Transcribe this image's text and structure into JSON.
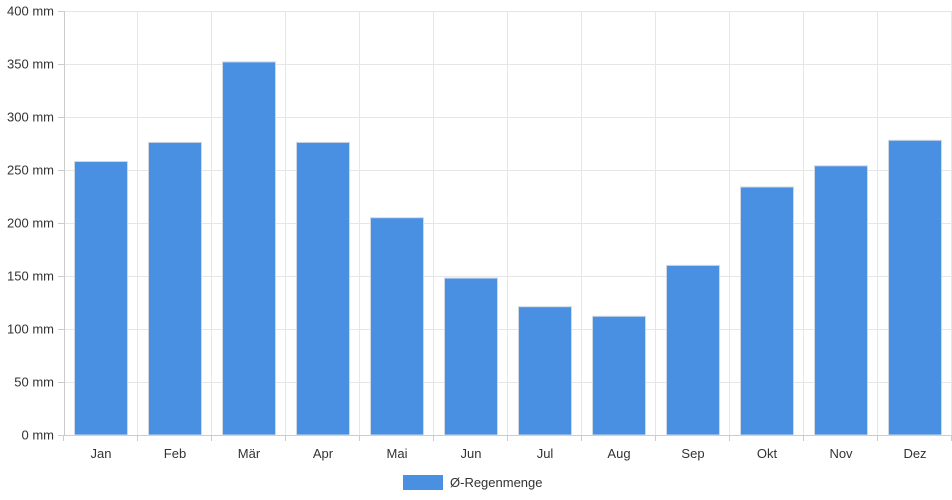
{
  "chart_data": {
    "type": "bar",
    "categories": [
      "Jan",
      "Feb",
      "Mär",
      "Apr",
      "Mai",
      "Jun",
      "Jul",
      "Aug",
      "Sep",
      "Okt",
      "Nov",
      "Dez"
    ],
    "series": [
      {
        "name": "Ø-Regenmenge",
        "values": [
          258,
          276,
          352,
          276,
          205,
          148,
          121,
          112,
          160,
          234,
          254,
          278
        ],
        "color": "#4a90e2"
      }
    ],
    "ylim": [
      0,
      400
    ],
    "yticks": [
      "0 mm",
      "50 mm",
      "100 mm",
      "150 mm",
      "200 mm",
      "250 mm",
      "300 mm",
      "350 mm",
      "400 mm"
    ],
    "ytick_values": [
      0,
      50,
      100,
      150,
      200,
      250,
      300,
      350,
      400
    ],
    "grid": true,
    "legend_position": "bottom"
  }
}
